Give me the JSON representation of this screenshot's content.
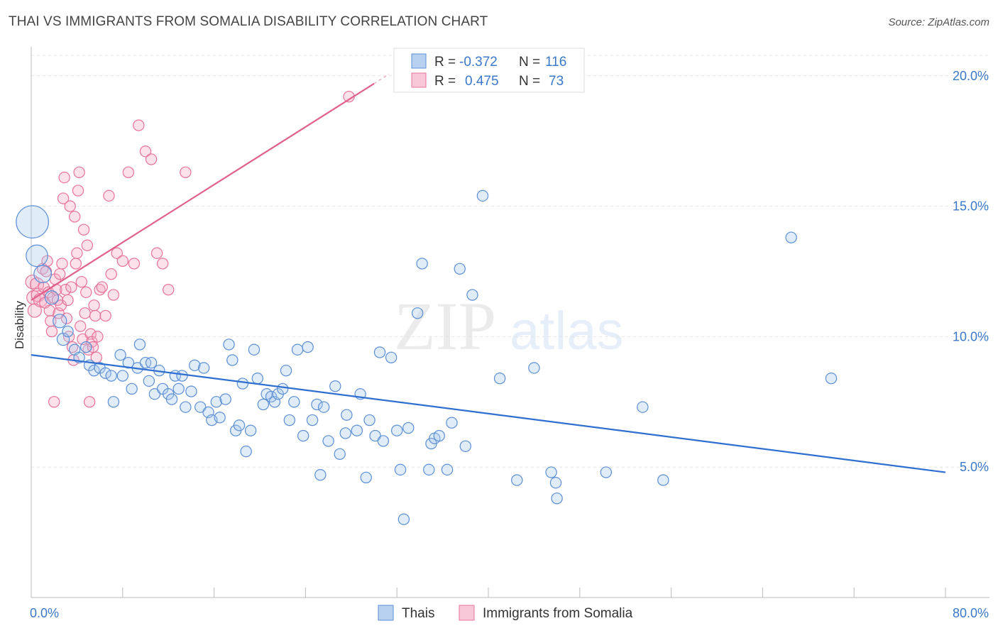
{
  "header": {
    "title": "THAI VS IMMIGRANTS FROM SOMALIA DISABILITY CORRELATION CHART",
    "source": "Source: ZipAtlas.com"
  },
  "watermark": {
    "zip": "ZIP",
    "atlas": "atlas"
  },
  "legend": {
    "r_label": "R =",
    "n_label": "N =",
    "thai": {
      "r": "-0.372",
      "n": "116"
    },
    "somalia": {
      "r": "0.475",
      "n": "73"
    }
  },
  "chart_data": {
    "type": "scatter",
    "title": "THAI VS IMMIGRANTS FROM SOMALIA DISABILITY CORRELATION CHART",
    "xlabel": "",
    "ylabel": "Disability",
    "xlim": [
      0,
      80
    ],
    "ylim": [
      0,
      21
    ],
    "x_tick_labels": [
      "0.0%",
      "80.0%"
    ],
    "y_ticks": [
      5,
      10,
      15,
      20
    ],
    "y_tick_labels": [
      "5.0%",
      "10.0%",
      "15.0%",
      "20.0%"
    ],
    "grid": true,
    "legend_position": "top-center",
    "colors": {
      "thai": "#4a87d8",
      "somalia": "#e8739a",
      "thai_line": "#2f6fd0",
      "somalia_line": "#e0608c"
    },
    "series": [
      {
        "name": "Thais",
        "r": -0.372,
        "n": 116,
        "trend": [
          [
            0,
            9.3
          ],
          [
            80,
            4.8
          ]
        ],
        "points": [
          [
            0.1,
            14.4,
            2.4
          ],
          [
            0.5,
            13.1,
            1.6
          ],
          [
            1.0,
            12.4,
            1.3
          ],
          [
            1.8,
            11.5,
            1.0
          ],
          [
            2.5,
            10.6,
            1.0
          ],
          [
            2.8,
            9.9,
            0.9
          ],
          [
            3.2,
            10.2,
            0.8
          ],
          [
            3.8,
            9.5,
            0.8
          ],
          [
            4.2,
            9.2,
            0.8
          ],
          [
            4.8,
            9.6,
            0.8
          ],
          [
            5.1,
            8.9,
            0.8
          ],
          [
            5.5,
            8.7,
            0.8
          ],
          [
            6.0,
            8.8,
            0.8
          ],
          [
            6.5,
            8.6,
            0.8
          ],
          [
            7.0,
            8.5,
            0.8
          ],
          [
            7.2,
            7.5,
            0.8
          ],
          [
            7.8,
            9.3,
            0.8
          ],
          [
            8.0,
            8.5,
            0.8
          ],
          [
            8.5,
            9.0,
            0.8
          ],
          [
            8.8,
            8.0,
            0.8
          ],
          [
            9.3,
            8.8,
            0.8
          ],
          [
            9.5,
            9.7,
            0.8
          ],
          [
            10.0,
            9.0,
            0.8
          ],
          [
            10.3,
            8.3,
            0.8
          ],
          [
            10.5,
            9.0,
            0.8
          ],
          [
            10.8,
            7.8,
            0.8
          ],
          [
            11.2,
            8.7,
            0.8
          ],
          [
            11.5,
            8.0,
            0.8
          ],
          [
            12.0,
            7.8,
            0.8
          ],
          [
            12.3,
            7.6,
            0.8
          ],
          [
            12.6,
            8.5,
            0.8
          ],
          [
            12.9,
            8.0,
            0.8
          ],
          [
            13.2,
            8.5,
            0.8
          ],
          [
            13.5,
            7.3,
            0.8
          ],
          [
            14.0,
            7.9,
            0.8
          ],
          [
            14.3,
            8.9,
            0.8
          ],
          [
            14.8,
            7.3,
            0.8
          ],
          [
            15.1,
            8.8,
            0.8
          ],
          [
            15.5,
            7.1,
            0.8
          ],
          [
            15.8,
            6.8,
            0.8
          ],
          [
            16.2,
            7.5,
            0.8
          ],
          [
            16.5,
            6.9,
            0.8
          ],
          [
            17.0,
            7.6,
            0.8
          ],
          [
            17.3,
            9.7,
            0.8
          ],
          [
            17.6,
            9.1,
            0.8
          ],
          [
            17.9,
            6.4,
            0.8
          ],
          [
            18.2,
            6.6,
            0.8
          ],
          [
            18.5,
            8.2,
            0.8
          ],
          [
            18.8,
            5.6,
            0.8
          ],
          [
            19.2,
            6.4,
            0.8
          ],
          [
            19.5,
            9.5,
            0.8
          ],
          [
            19.8,
            8.4,
            0.8
          ],
          [
            20.3,
            7.4,
            0.8
          ],
          [
            20.6,
            7.8,
            0.8
          ],
          [
            21.0,
            7.7,
            0.8
          ],
          [
            21.3,
            7.5,
            0.8
          ],
          [
            21.6,
            7.8,
            0.8
          ],
          [
            22.0,
            8.0,
            0.8
          ],
          [
            22.3,
            8.7,
            0.8
          ],
          [
            22.6,
            6.8,
            0.8
          ],
          [
            23.0,
            7.5,
            0.8
          ],
          [
            23.3,
            9.5,
            0.8
          ],
          [
            23.8,
            6.2,
            0.8
          ],
          [
            24.2,
            9.6,
            0.8
          ],
          [
            24.6,
            6.8,
            0.8
          ],
          [
            25.0,
            7.4,
            0.8
          ],
          [
            25.3,
            4.7,
            0.8
          ],
          [
            25.6,
            7.3,
            0.8
          ],
          [
            26.0,
            6.0,
            0.8
          ],
          [
            26.6,
            8.1,
            0.8
          ],
          [
            27.0,
            5.5,
            0.8
          ],
          [
            27.5,
            6.3,
            0.8
          ],
          [
            27.6,
            7.0,
            0.8
          ],
          [
            28.5,
            6.4,
            0.8
          ],
          [
            28.8,
            7.8,
            0.8
          ],
          [
            29.3,
            4.6,
            0.8
          ],
          [
            29.6,
            6.8,
            0.8
          ],
          [
            30.1,
            6.2,
            0.8
          ],
          [
            30.5,
            9.4,
            0.8
          ],
          [
            30.8,
            6.0,
            0.8
          ],
          [
            31.5,
            9.2,
            0.8
          ],
          [
            32.0,
            6.4,
            0.8
          ],
          [
            32.3,
            4.9,
            0.8
          ],
          [
            32.6,
            3.0,
            0.8
          ],
          [
            33.0,
            6.5,
            0.8
          ],
          [
            33.8,
            10.9,
            0.8
          ],
          [
            34.2,
            12.8,
            0.8
          ],
          [
            34.8,
            4.9,
            0.8
          ],
          [
            35.0,
            5.9,
            0.8
          ],
          [
            35.3,
            6.1,
            0.8
          ],
          [
            35.7,
            6.2,
            0.8
          ],
          [
            36.4,
            4.9,
            0.8
          ],
          [
            36.8,
            6.7,
            0.8
          ],
          [
            37.5,
            12.6,
            0.8
          ],
          [
            38.0,
            5.8,
            0.8
          ],
          [
            38.6,
            11.6,
            0.8
          ],
          [
            41.0,
            8.4,
            0.8
          ],
          [
            42.5,
            4.5,
            0.8
          ],
          [
            44.0,
            8.8,
            0.8
          ],
          [
            45.5,
            4.8,
            0.8
          ],
          [
            45.9,
            4.4,
            0.8
          ],
          [
            46.0,
            3.8,
            0.8
          ],
          [
            50.3,
            4.8,
            0.8
          ],
          [
            53.5,
            7.3,
            0.8
          ],
          [
            55.3,
            4.5,
            0.8
          ],
          [
            66.5,
            13.8,
            0.8
          ],
          [
            70.0,
            8.4,
            0.8
          ],
          [
            39.5,
            15.4,
            0.8
          ]
        ]
      },
      {
        "name": "Immigrants from Somalia",
        "r": 0.475,
        "n": 73,
        "trend": [
          [
            0,
            11.4
          ],
          [
            30,
            19.7
          ]
        ],
        "points": [
          [
            0.1,
            12.1,
            1.0
          ],
          [
            0.2,
            11.5,
            1.0
          ],
          [
            0.3,
            11.0,
            1.0
          ],
          [
            0.5,
            12.0,
            1.0
          ],
          [
            0.6,
            11.6,
            1.0
          ],
          [
            0.8,
            11.4,
            1.0
          ],
          [
            1.0,
            12.6,
            0.8
          ],
          [
            1.1,
            11.9,
            0.8
          ],
          [
            1.2,
            11.3,
            0.8
          ],
          [
            1.3,
            12.5,
            0.8
          ],
          [
            1.4,
            12.9,
            0.8
          ],
          [
            1.5,
            11.7,
            0.8
          ],
          [
            1.6,
            11.0,
            0.8
          ],
          [
            1.7,
            10.6,
            0.8
          ],
          [
            1.8,
            10.2,
            0.8
          ],
          [
            1.9,
            11.5,
            0.8
          ],
          [
            2.0,
            7.5,
            0.8
          ],
          [
            2.1,
            12.2,
            0.8
          ],
          [
            2.2,
            11.8,
            0.8
          ],
          [
            2.3,
            11.4,
            0.8
          ],
          [
            2.4,
            10.9,
            0.8
          ],
          [
            2.5,
            12.4,
            0.8
          ],
          [
            2.6,
            11.2,
            0.8
          ],
          [
            2.7,
            12.8,
            0.8
          ],
          [
            2.8,
            15.3,
            0.8
          ],
          [
            2.9,
            16.1,
            0.8
          ],
          [
            3.0,
            11.8,
            0.8
          ],
          [
            3.1,
            10.7,
            0.8
          ],
          [
            3.2,
            11.4,
            0.8
          ],
          [
            3.3,
            10.0,
            0.8
          ],
          [
            3.4,
            15.0,
            0.8
          ],
          [
            3.5,
            11.9,
            0.8
          ],
          [
            3.6,
            9.6,
            0.8
          ],
          [
            3.7,
            9.1,
            0.8
          ],
          [
            3.8,
            14.6,
            0.8
          ],
          [
            3.9,
            12.8,
            0.8
          ],
          [
            4.0,
            13.2,
            0.8
          ],
          [
            4.1,
            15.6,
            0.8
          ],
          [
            4.2,
            16.3,
            0.8
          ],
          [
            4.3,
            10.4,
            0.8
          ],
          [
            4.4,
            12.1,
            0.8
          ],
          [
            4.5,
            9.9,
            0.8
          ],
          [
            4.6,
            14.1,
            0.8
          ],
          [
            4.7,
            10.9,
            0.8
          ],
          [
            4.8,
            11.7,
            0.8
          ],
          [
            4.9,
            13.5,
            0.8
          ],
          [
            5.0,
            9.5,
            0.8
          ],
          [
            5.1,
            7.5,
            0.8
          ],
          [
            5.2,
            10.1,
            0.8
          ],
          [
            5.3,
            9.8,
            0.8
          ],
          [
            5.4,
            9.6,
            0.8
          ],
          [
            5.5,
            11.2,
            0.8
          ],
          [
            5.6,
            10.8,
            0.8
          ],
          [
            5.8,
            10.0,
            0.8
          ],
          [
            6.0,
            11.8,
            0.8
          ],
          [
            6.2,
            11.9,
            0.8
          ],
          [
            6.5,
            10.8,
            0.8
          ],
          [
            6.8,
            15.4,
            0.8
          ],
          [
            7.0,
            12.4,
            0.8
          ],
          [
            7.2,
            11.6,
            0.8
          ],
          [
            7.5,
            13.2,
            0.8
          ],
          [
            8.0,
            12.9,
            0.8
          ],
          [
            8.5,
            16.3,
            0.8
          ],
          [
            9.0,
            12.8,
            0.8
          ],
          [
            9.4,
            18.1,
            0.8
          ],
          [
            10.0,
            17.1,
            0.8
          ],
          [
            10.5,
            16.8,
            0.8
          ],
          [
            11.0,
            13.2,
            0.8
          ],
          [
            11.5,
            12.8,
            0.8
          ],
          [
            12.0,
            11.8,
            0.8
          ],
          [
            13.5,
            16.3,
            0.8
          ],
          [
            27.8,
            19.2,
            0.8
          ],
          [
            5.7,
            9.2,
            0.8
          ]
        ]
      }
    ]
  }
}
